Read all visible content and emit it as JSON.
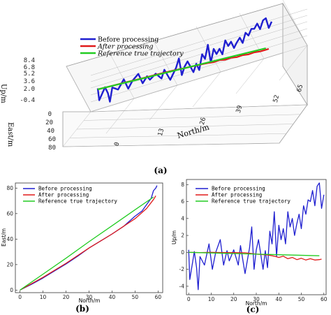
{
  "panel_labels": {
    "a": "(a)",
    "b": "(b)",
    "c": "(c)"
  },
  "colors": {
    "before": "#1f1fd0",
    "after": "#e01a1a",
    "reference": "#22cc22",
    "axis": "#333333",
    "grid": "#bdbdbd"
  },
  "chart_data": [
    {
      "panel": "a",
      "type": "line",
      "xlabel": "North/m",
      "ylabel": "East/m",
      "zlabel": "Up/m",
      "x_ticks": [
        "0",
        "13",
        "26",
        "39",
        "52",
        "65"
      ],
      "y_ticks": [
        "80",
        "60",
        "40",
        "20",
        "0"
      ],
      "z_ticks": [
        "-0.4",
        "2.0",
        "3.6",
        "5.2",
        "6.8",
        "8.4"
      ],
      "legend": [
        {
          "key": "before",
          "label": "Before processing"
        },
        {
          "key": "after",
          "label": "After processing"
        },
        {
          "key": "reference",
          "label": "Reference true trajectory"
        }
      ],
      "legend_position": "top-right"
    },
    {
      "panel": "b",
      "type": "line",
      "xlabel": "North/m",
      "ylabel": "East/m",
      "xlim": [
        -2,
        62
      ],
      "ylim": [
        -2,
        84
      ],
      "x_ticks": [
        0,
        10,
        20,
        30,
        40,
        50,
        60
      ],
      "y_ticks": [
        0,
        20,
        40,
        60,
        80
      ],
      "legend_position": "top-left",
      "series": [
        {
          "name": "Before processing",
          "key": "before",
          "x": [
            0,
            5,
            10,
            15,
            20,
            25,
            30,
            35,
            40,
            45,
            50,
            53,
            55,
            57,
            58,
            59,
            59.5
          ],
          "y": [
            0,
            4.5,
            9.5,
            15,
            20.5,
            26.5,
            33,
            38.5,
            44,
            50,
            58,
            62,
            67,
            72,
            78,
            80,
            82
          ]
        },
        {
          "name": "After processing",
          "key": "after",
          "x": [
            0,
            10,
            20,
            30,
            40,
            50,
            55,
            58,
            59
          ],
          "y": [
            0,
            10,
            21,
            33,
            44,
            56,
            64,
            71,
            74
          ]
        },
        {
          "name": "Reference true trajectory",
          "key": "reference",
          "x": [
            0,
            10,
            20,
            30,
            40,
            50,
            58
          ],
          "y": [
            0,
            12.5,
            25,
            38,
            50.5,
            63,
            73
          ]
        }
      ]
    },
    {
      "panel": "c",
      "type": "line",
      "xlabel": "North/m",
      "ylabel": "Up/m",
      "xlim": [
        -1,
        61
      ],
      "ylim": [
        -5,
        8.6
      ],
      "x_ticks": [
        0,
        10,
        20,
        30,
        40,
        50,
        60
      ],
      "y_ticks": [
        -4,
        -2,
        0,
        2,
        4,
        6,
        8
      ],
      "legend_position": "top-left",
      "series": [
        {
          "name": "Before processing",
          "key": "before",
          "x": [
            0,
            0.5,
            2.5,
            3.5,
            4.2,
            5,
            7,
            9,
            10.5,
            12,
            14,
            15.5,
            17,
            18,
            20,
            22,
            23,
            25,
            27,
            28,
            29,
            30,
            31,
            33,
            34,
            35,
            36,
            37,
            38,
            39,
            40,
            41,
            42,
            43,
            44,
            45,
            46,
            47,
            48,
            49,
            50,
            51,
            52,
            53,
            54,
            55,
            56,
            57,
            58,
            59,
            60
          ],
          "y": [
            0.3,
            -3.2,
            0.1,
            -1.8,
            -4.4,
            -0.5,
            -1.5,
            1.0,
            -2.0,
            0.0,
            1.5,
            -1.5,
            0.2,
            -1.0,
            0.3,
            -1.5,
            0.8,
            -2.5,
            0.5,
            3.0,
            -2.0,
            0.3,
            1.5,
            -2.0,
            0.2,
            -1.8,
            2.5,
            1.0,
            4.8,
            -0.5,
            3.2,
            1.5,
            2.8,
            1.0,
            4.8,
            3.0,
            4.0,
            2.0,
            3.4,
            4.5,
            2.8,
            5.5,
            4.5,
            6.2,
            6.0,
            7.3,
            5.5,
            7.8,
            8.2,
            5.2,
            6.8
          ]
        },
        {
          "name": "After processing",
          "key": "after",
          "x": [
            0,
            5,
            10,
            15,
            20,
            25,
            30,
            35,
            38,
            40,
            42,
            44,
            46,
            48,
            50,
            52,
            54,
            56,
            58,
            59
          ],
          "y": [
            0.0,
            -0.02,
            0.0,
            -0.03,
            -0.02,
            -0.05,
            -0.2,
            -0.3,
            -0.45,
            -0.6,
            -0.45,
            -0.75,
            -0.6,
            -0.85,
            -0.7,
            -0.9,
            -0.75,
            -0.9,
            -0.85,
            -0.8
          ]
        },
        {
          "name": "Reference true trajectory",
          "key": "reference",
          "x": [
            0,
            58
          ],
          "y": [
            0.0,
            -0.4
          ]
        }
      ]
    }
  ]
}
